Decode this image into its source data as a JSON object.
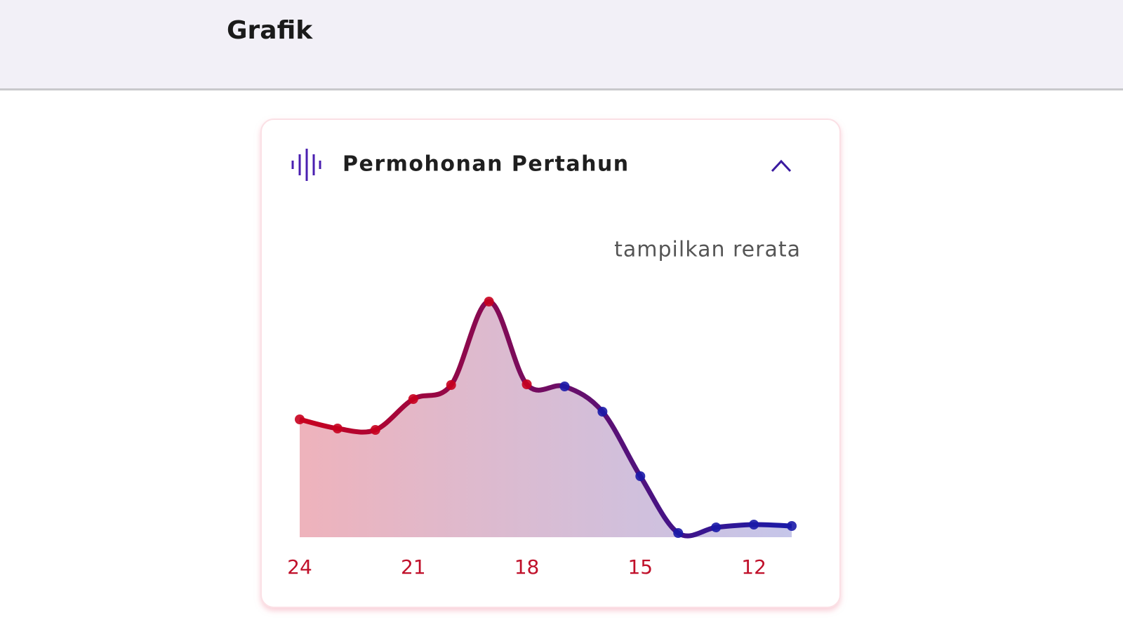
{
  "header": {
    "title": "Grafik"
  },
  "card": {
    "title": "Permohonan Pertahun",
    "toggle": "tampilkan rerata"
  },
  "chart_data": {
    "type": "area",
    "x": [
      24,
      23,
      22,
      21,
      20,
      19,
      18,
      17,
      16,
      15,
      14,
      13,
      12,
      11
    ],
    "values": [
      168,
      155,
      153,
      197,
      217,
      336,
      218,
      215,
      179,
      87,
      6,
      14,
      18,
      16
    ],
    "xlim": [
      24,
      11
    ],
    "xticks": [
      24,
      21,
      18,
      15,
      12
    ],
    "ylim": [
      0,
      350
    ],
    "color": [
      "#c8001e",
      "#1a1aa8"
    ]
  }
}
